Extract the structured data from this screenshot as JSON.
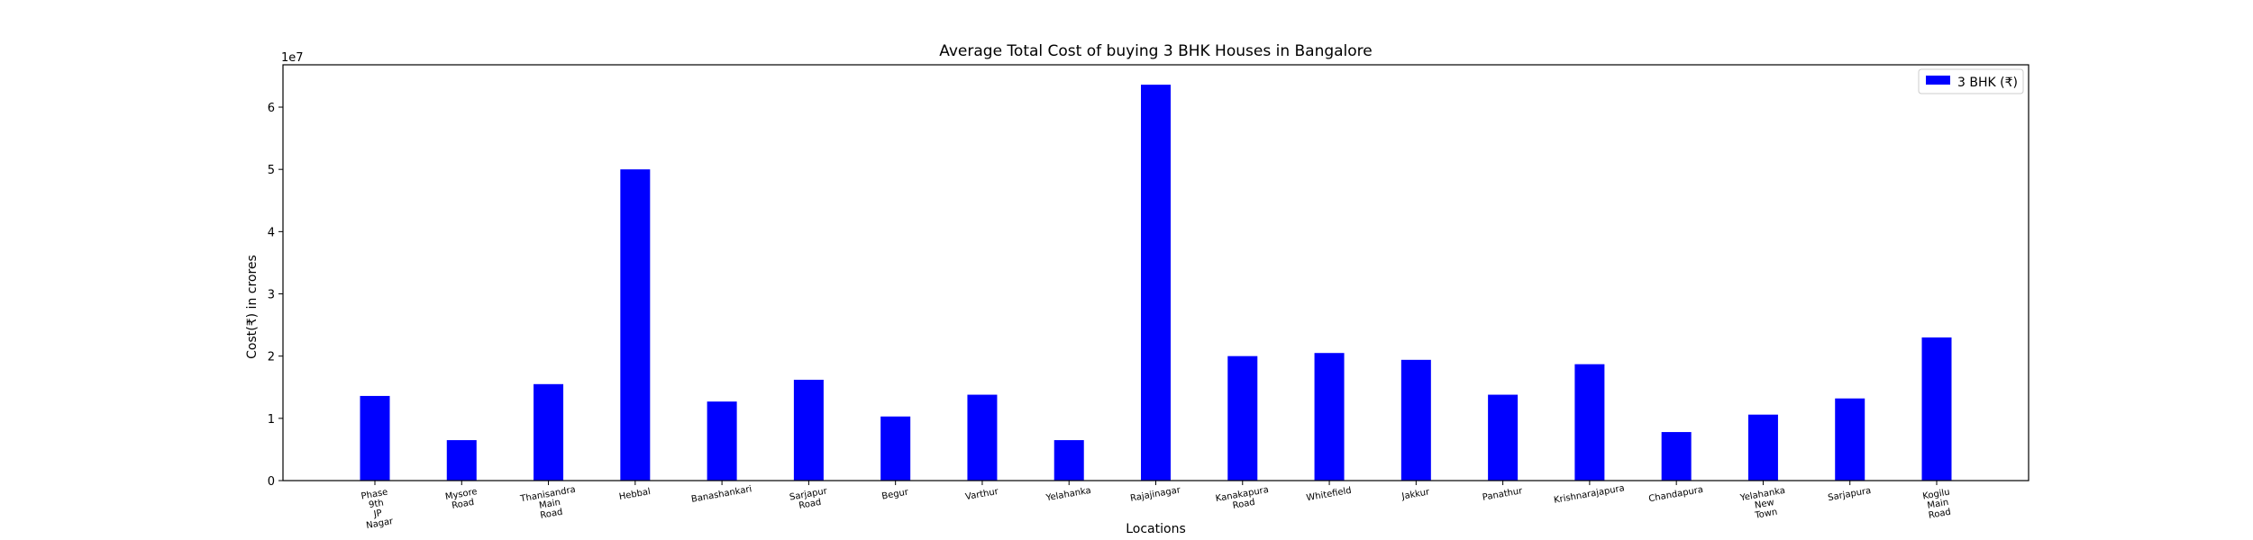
{
  "chart_data": {
    "type": "bar",
    "title": "Average Total Cost of buying 3 BHK Houses in Bangalore",
    "xlabel": "Locations",
    "ylabel": "Cost(₹) in crores",
    "offset_text": "1e7",
    "categories": [
      "Phase 9th JP Nagar",
      "Mysore Road",
      "Thanisandra Main Road",
      "Hebbal",
      "Banashankari",
      "Sarjapur Road",
      "Begur",
      "Varthur",
      "Yelahanka",
      "Rajajinagar",
      "Kanakapura Road",
      "Whitefield",
      "Jakkur",
      "Panathur",
      "Krishnarajapura",
      "Chandapura",
      "Yelahanka New Town",
      "Sarjapura",
      "Kogilu Main Road"
    ],
    "series": [
      {
        "name": "3 BHK (₹)",
        "color": "#0000ff",
        "values": [
          13.6,
          6.5,
          15.5,
          50.0,
          12.7,
          16.2,
          10.3,
          13.8,
          6.5,
          63.6,
          20.0,
          20.5,
          19.4,
          13.8,
          18.7,
          7.8,
          10.6,
          13.2,
          23.0
        ]
      }
    ],
    "yticks": [
      "0",
      "1",
      "2",
      "3",
      "4",
      "5",
      "6"
    ],
    "ylim": [
      0,
      66.8
    ],
    "legend_position": "upper right",
    "grid": false
  }
}
